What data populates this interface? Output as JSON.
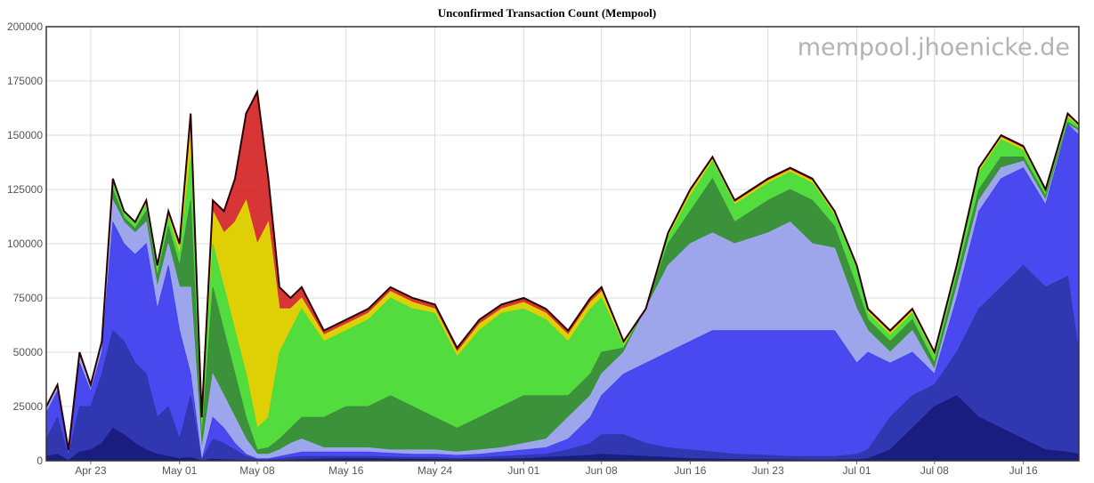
{
  "chart_data": {
    "type": "area",
    "title": "Unconfirmed Transaction Count (Mempool)",
    "watermark": "mempool.jhoenicke.de",
    "xlabel": "",
    "ylabel": "",
    "ylim": [
      0,
      200000
    ],
    "yticks": [
      0,
      25000,
      50000,
      75000,
      100000,
      125000,
      150000,
      175000,
      200000
    ],
    "yticklabels": [
      "0",
      "25000",
      "50000",
      "75000",
      "100000",
      "125000",
      "150000",
      "175000",
      "200000"
    ],
    "xlim": [
      "2018-04-19",
      "2018-07-21"
    ],
    "xticks": [
      "2018-04-23",
      "2018-05-01",
      "2018-05-08",
      "2018-05-16",
      "2018-05-24",
      "2018-06-01",
      "2018-06-08",
      "2018-06-16",
      "2018-06-23",
      "2018-07-01",
      "2018-07-08",
      "2018-07-16"
    ],
    "xticklabels": [
      "Apr 23",
      "May 01",
      "May 08",
      "May 16",
      "May 24",
      "Jun 01",
      "Jun 08",
      "Jun 16",
      "Jun 23",
      "Jul 01",
      "Jul 08",
      "Jul 16"
    ],
    "grid": true,
    "x": [
      "2018-04-19",
      "2018-04-20",
      "2018-04-21",
      "2018-04-22",
      "2018-04-23",
      "2018-04-24",
      "2018-04-25",
      "2018-04-26",
      "2018-04-27",
      "2018-04-28",
      "2018-04-29",
      "2018-04-30",
      "2018-05-01",
      "2018-05-02",
      "2018-05-03",
      "2018-05-04",
      "2018-05-05",
      "2018-05-06",
      "2018-05-07",
      "2018-05-08",
      "2018-05-09",
      "2018-05-10",
      "2018-05-11",
      "2018-05-12",
      "2018-05-14",
      "2018-05-16",
      "2018-05-18",
      "2018-05-20",
      "2018-05-22",
      "2018-05-24",
      "2018-05-26",
      "2018-05-28",
      "2018-05-30",
      "2018-06-01",
      "2018-06-03",
      "2018-06-05",
      "2018-06-07",
      "2018-06-08",
      "2018-06-10",
      "2018-06-12",
      "2018-06-14",
      "2018-06-16",
      "2018-06-18",
      "2018-06-20",
      "2018-06-23",
      "2018-06-25",
      "2018-06-27",
      "2018-06-29",
      "2018-07-01",
      "2018-07-02",
      "2018-07-04",
      "2018-07-06",
      "2018-07-08",
      "2018-07-10",
      "2018-07-12",
      "2018-07-14",
      "2018-07-16",
      "2018-07-18",
      "2018-07-20",
      "2018-07-21"
    ],
    "total": [
      25000,
      35000,
      5000,
      50000,
      35000,
      55000,
      130000,
      115000,
      110000,
      120000,
      90000,
      115000,
      100000,
      160000,
      20000,
      120000,
      115000,
      130000,
      160000,
      170000,
      130000,
      80000,
      75000,
      80000,
      60000,
      65000,
      70000,
      80000,
      75000,
      72000,
      52000,
      65000,
      72000,
      75000,
      70000,
      60000,
      75000,
      80000,
      55000,
      70000,
      105000,
      125000,
      140000,
      120000,
      130000,
      135000,
      130000,
      115000,
      90000,
      70000,
      60000,
      70000,
      50000,
      90000,
      135000,
      150000,
      145000,
      125000,
      160000,
      155000
    ],
    "series": [
      {
        "color": "#1a1a7a",
        "values": [
          2000,
          3000,
          0,
          4000,
          5000,
          8000,
          15000,
          12000,
          8000,
          5000,
          3000,
          2000,
          1000,
          1500,
          0,
          800,
          500,
          300,
          200,
          100,
          100,
          200,
          300,
          500,
          800,
          1000,
          1000,
          800,
          700,
          600,
          500,
          600,
          800,
          1000,
          1500,
          2000,
          2500,
          3000,
          2500,
          2000,
          1500,
          1000,
          800,
          600,
          500,
          400,
          300,
          300,
          500,
          1000,
          5000,
          15000,
          25000,
          30000,
          20000,
          15000,
          10000,
          5000,
          4000,
          3000
        ]
      },
      {
        "color": "#2e35a8",
        "values": [
          10000,
          20000,
          2000,
          25000,
          25000,
          40000,
          60000,
          55000,
          45000,
          40000,
          20000,
          25000,
          10000,
          30000,
          0,
          10000,
          8000,
          5000,
          2000,
          500,
          500,
          1000,
          1500,
          2000,
          2000,
          2000,
          2000,
          1800,
          1500,
          1500,
          1200,
          1500,
          2000,
          2500,
          3000,
          5000,
          8000,
          12000,
          12000,
          8000,
          6000,
          5000,
          4000,
          3000,
          2500,
          2000,
          2000,
          2000,
          3000,
          5000,
          20000,
          30000,
          35000,
          50000,
          70000,
          80000,
          90000,
          80000,
          85000,
          50000
        ]
      },
      {
        "color": "#3f3ff0",
        "values": [
          22000,
          32000,
          4000,
          45000,
          32000,
          50000,
          110000,
          100000,
          95000,
          100000,
          70000,
          90000,
          60000,
          40000,
          0,
          20000,
          15000,
          8000,
          3000,
          1000,
          1000,
          2000,
          3000,
          4000,
          4000,
          4000,
          4000,
          3500,
          3000,
          3000,
          2500,
          3000,
          4000,
          5000,
          6000,
          10000,
          20000,
          30000,
          40000,
          45000,
          50000,
          55000,
          60000,
          60000,
          60000,
          60000,
          60000,
          60000,
          45000,
          50000,
          45000,
          50000,
          40000,
          75000,
          115000,
          130000,
          135000,
          118000,
          155000,
          150000
        ]
      },
      {
        "color": "#a8a8ff",
        "values": [
          24000,
          34000,
          4500,
          48000,
          34000,
          53000,
          120000,
          110000,
          105000,
          110000,
          80000,
          100000,
          80000,
          80000,
          5000,
          40000,
          30000,
          20000,
          10000,
          3000,
          3000,
          5000,
          8000,
          10000,
          6000,
          6000,
          6000,
          5000,
          5000,
          5000,
          4000,
          5000,
          6000,
          8000,
          10000,
          20000,
          30000,
          40000,
          50000,
          70000,
          90000,
          100000,
          105000,
          100000,
          105000,
          110000,
          100000,
          98000,
          70000,
          60000,
          50000,
          60000,
          42000,
          80000,
          120000,
          135000,
          138000,
          120000,
          155000,
          152000
        ]
      },
      {
        "color": "#3a8a3a",
        "values": [
          24500,
          34500,
          4800,
          49000,
          34500,
          54000,
          125000,
          112000,
          107000,
          115000,
          85000,
          108000,
          90000,
          120000,
          10000,
          80000,
          60000,
          40000,
          20000,
          5000,
          6000,
          10000,
          15000,
          20000,
          20000,
          25000,
          25000,
          30000,
          25000,
          20000,
          15000,
          20000,
          25000,
          30000,
          30000,
          30000,
          40000,
          50000,
          52000,
          70000,
          100000,
          115000,
          130000,
          110000,
          120000,
          125000,
          120000,
          108000,
          80000,
          65000,
          55000,
          65000,
          45000,
          85000,
          125000,
          140000,
          140000,
          122000,
          156000,
          153000
        ]
      },
      {
        "color": "#44dd44",
        "values": [
          24800,
          34800,
          4900,
          49500,
          34800,
          54500,
          128000,
          114000,
          109000,
          118000,
          88000,
          112000,
          95000,
          140000,
          15000,
          100000,
          80000,
          60000,
          40000,
          15000,
          20000,
          50000,
          60000,
          70000,
          55000,
          60000,
          65000,
          75000,
          70000,
          68000,
          48000,
          60000,
          68000,
          70000,
          65000,
          55000,
          70000,
          75000,
          53000,
          70000,
          103000,
          122000,
          138000,
          118000,
          128000,
          133000,
          128000,
          113000,
          88000,
          68000,
          58000,
          68000,
          48000,
          88000,
          133000,
          148000,
          143000,
          124000,
          158000,
          154000
        ]
      },
      {
        "color": "#e0e000",
        "values": [
          24900,
          34900,
          4950,
          49800,
          34900,
          54800,
          129000,
          114500,
          109500,
          119000,
          89000,
          113000,
          98000,
          155000,
          18000,
          115000,
          105000,
          110000,
          120000,
          100000,
          110000,
          70000,
          70000,
          75000,
          58000,
          63000,
          68000,
          78000,
          73000,
          70000,
          50000,
          63000,
          70000,
          73000,
          68000,
          58000,
          73000,
          78000,
          54000,
          70000,
          104000,
          124000,
          139000,
          119000,
          129000,
          134000,
          129000,
          114000,
          89000,
          69000,
          59000,
          69000,
          49000,
          89000,
          134000,
          149000,
          144000,
          124500,
          159000,
          154500
        ]
      },
      {
        "color": "#d42020",
        "values": [
          25000,
          35000,
          5000,
          50000,
          35000,
          55000,
          130000,
          115000,
          110000,
          120000,
          90000,
          115000,
          100000,
          160000,
          20000,
          120000,
          115000,
          130000,
          160000,
          170000,
          130000,
          80000,
          75000,
          80000,
          60000,
          65000,
          70000,
          80000,
          75000,
          72000,
          52000,
          65000,
          72000,
          75000,
          70000,
          60000,
          75000,
          80000,
          55000,
          70000,
          105000,
          125000,
          140000,
          120000,
          130000,
          135000,
          130000,
          115000,
          90000,
          70000,
          60000,
          70000,
          50000,
          90000,
          135000,
          150000,
          145000,
          125000,
          160000,
          155000
        ]
      }
    ]
  }
}
